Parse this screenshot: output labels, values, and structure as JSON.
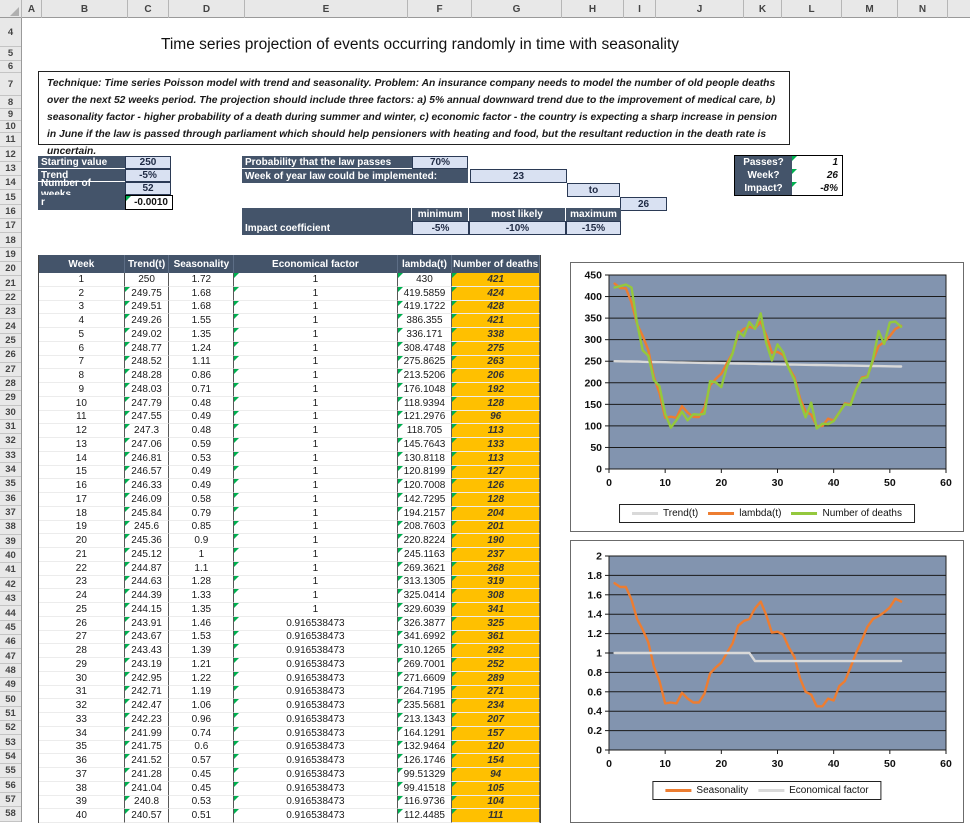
{
  "spreadsheet": {
    "column_headers": [
      "A",
      "B",
      "C",
      "D",
      "E",
      "F",
      "G",
      "H",
      "I",
      "J",
      "K",
      "L",
      "M",
      "N"
    ],
    "row_numbers": [
      "4",
      "5",
      "6",
      "7",
      "8",
      "9",
      "10",
      "11",
      "12",
      "13",
      "14",
      "15",
      "16",
      "17",
      "18",
      "19",
      "20",
      "21",
      "22",
      "23",
      "24",
      "25",
      "26",
      "27",
      "28",
      "29",
      "30",
      "31",
      "32",
      "33",
      "34",
      "35",
      "36",
      "37",
      "38",
      "39",
      "40",
      "41",
      "42",
      "43",
      "44",
      "45",
      "46",
      "47",
      "48",
      "49",
      "50",
      "51",
      "52",
      "53",
      "54",
      "55",
      "56",
      "57",
      "58"
    ]
  },
  "title": "Time series projection of events occurring randomly in time with seasonality",
  "description": "Technique: Time series Poisson model with trend and seasonality. Problem: An insurance company needs to model the number of old people deaths over the next 52 weeks period. The projection should include three factors: a) 5% annual downward trend due to the improvement of medical care, b) seasonality factor - higher probability of a death during summer and winter, c) economic factor - the country is expecting a sharp increase in pension in June if the law is passed through parliament which should help pensioners with heating and food, but the resultant reduction in the death rate is uncertain.",
  "inputs": {
    "starting_value_label": "Starting value",
    "starting_value": "250",
    "trend_label": "Trend",
    "trend": "-5%",
    "weeks_label": "Number of weeks",
    "weeks": "52",
    "r_label": "r",
    "r": "-0.0010"
  },
  "law": {
    "probability_label": "Probability that the law passes",
    "probability": "70%",
    "week_label": "Week of year law could be implemented:",
    "week_from": "23",
    "to_label": "to",
    "week_to": "26"
  },
  "outputs": {
    "passes_label": "Passes?",
    "passes": "1",
    "week_label": "Week?",
    "week": "26",
    "impact_label": "Impact?",
    "impact": "-8%"
  },
  "impact_coefficient": {
    "row_label": "Impact coefficient",
    "headers": [
      "minimum",
      "most likely",
      "maximum"
    ],
    "values": [
      "-5%",
      "-10%",
      "-15%"
    ]
  },
  "table": {
    "headers": [
      "Week",
      "Trend(t)",
      "Seasonality",
      "Economical factor",
      "lambda(t)",
      "Number of deaths"
    ],
    "rows": [
      [
        "1",
        "250",
        "1.72",
        "1",
        "430",
        "421"
      ],
      [
        "2",
        "249.75",
        "1.68",
        "1",
        "419.5859",
        "424"
      ],
      [
        "3",
        "249.51",
        "1.68",
        "1",
        "419.1722",
        "428"
      ],
      [
        "4",
        "249.26",
        "1.55",
        "1",
        "386.355",
        "421"
      ],
      [
        "5",
        "249.02",
        "1.35",
        "1",
        "336.171",
        "338"
      ],
      [
        "6",
        "248.77",
        "1.24",
        "1",
        "308.4748",
        "275"
      ],
      [
        "7",
        "248.52",
        "1.11",
        "1",
        "275.8625",
        "263"
      ],
      [
        "8",
        "248.28",
        "0.86",
        "1",
        "213.5206",
        "206"
      ],
      [
        "9",
        "248.03",
        "0.71",
        "1",
        "176.1048",
        "192"
      ],
      [
        "10",
        "247.79",
        "0.48",
        "1",
        "118.9394",
        "128"
      ],
      [
        "11",
        "247.55",
        "0.49",
        "1",
        "121.2976",
        "96"
      ],
      [
        "12",
        "247.3",
        "0.48",
        "1",
        "118.705",
        "113"
      ],
      [
        "13",
        "247.06",
        "0.59",
        "1",
        "145.7643",
        "133"
      ],
      [
        "14",
        "246.81",
        "0.53",
        "1",
        "130.8118",
        "113"
      ],
      [
        "15",
        "246.57",
        "0.49",
        "1",
        "120.8199",
        "127"
      ],
      [
        "16",
        "246.33",
        "0.49",
        "1",
        "120.7008",
        "126"
      ],
      [
        "17",
        "246.09",
        "0.58",
        "1",
        "142.7295",
        "128"
      ],
      [
        "18",
        "245.84",
        "0.79",
        "1",
        "194.2157",
        "204"
      ],
      [
        "19",
        "245.6",
        "0.85",
        "1",
        "208.7603",
        "201"
      ],
      [
        "20",
        "245.36",
        "0.9",
        "1",
        "220.8224",
        "190"
      ],
      [
        "21",
        "245.12",
        "1",
        "1",
        "245.1163",
        "237"
      ],
      [
        "22",
        "244.87",
        "1.1",
        "1",
        "269.3621",
        "268"
      ],
      [
        "23",
        "244.63",
        "1.28",
        "1",
        "313.1305",
        "319"
      ],
      [
        "24",
        "244.39",
        "1.33",
        "1",
        "325.0414",
        "308"
      ],
      [
        "25",
        "244.15",
        "1.35",
        "1",
        "329.6039",
        "341"
      ],
      [
        "26",
        "243.91",
        "1.46",
        "0.916538473",
        "326.3877",
        "325"
      ],
      [
        "27",
        "243.67",
        "1.53",
        "0.916538473",
        "341.6992",
        "361"
      ],
      [
        "28",
        "243.43",
        "1.39",
        "0.916538473",
        "310.1265",
        "292"
      ],
      [
        "29",
        "243.19",
        "1.21",
        "0.916538473",
        "269.7001",
        "252"
      ],
      [
        "30",
        "242.95",
        "1.22",
        "0.916538473",
        "271.6609",
        "289"
      ],
      [
        "31",
        "242.71",
        "1.19",
        "0.916538473",
        "264.7195",
        "271"
      ],
      [
        "32",
        "242.47",
        "1.06",
        "0.916538473",
        "235.5681",
        "234"
      ],
      [
        "33",
        "242.23",
        "0.96",
        "0.916538473",
        "213.1343",
        "207"
      ],
      [
        "34",
        "241.99",
        "0.74",
        "0.916538473",
        "164.1291",
        "157"
      ],
      [
        "35",
        "241.75",
        "0.6",
        "0.916538473",
        "132.9464",
        "120"
      ],
      [
        "36",
        "241.52",
        "0.57",
        "0.916538473",
        "126.1746",
        "154"
      ],
      [
        "37",
        "241.28",
        "0.45",
        "0.916538473",
        "99.51329",
        "94"
      ],
      [
        "38",
        "241.04",
        "0.45",
        "0.916538473",
        "99.41518",
        "105"
      ],
      [
        "39",
        "240.8",
        "0.53",
        "0.916538473",
        "116.9736",
        "104"
      ],
      [
        "40",
        "240.57",
        "0.51",
        "0.916538473",
        "112.4485",
        "111"
      ]
    ]
  },
  "chart_data": [
    {
      "type": "line",
      "x": [
        1,
        2,
        3,
        4,
        5,
        6,
        7,
        8,
        9,
        10,
        11,
        12,
        13,
        14,
        15,
        16,
        17,
        18,
        19,
        20,
        21,
        22,
        23,
        24,
        25,
        26,
        27,
        28,
        29,
        30,
        31,
        32,
        33,
        34,
        35,
        36,
        37,
        38,
        39,
        40,
        41,
        42,
        43,
        44,
        45,
        46,
        47,
        48,
        49,
        50,
        51,
        52
      ],
      "xlim": [
        0,
        60
      ],
      "xtick": 10,
      "ylim": [
        0,
        450
      ],
      "ytick": 50,
      "plot_bg": "#8294AF",
      "legend": "bottom",
      "series": [
        {
          "name": "Trend(t)",
          "color": "#D9D9D9",
          "values": [
            250,
            249.75,
            249.51,
            249.26,
            249.02,
            248.77,
            248.52,
            248.28,
            248.03,
            247.79,
            247.55,
            247.3,
            247.06,
            246.81,
            246.57,
            246.33,
            246.09,
            245.84,
            245.6,
            245.36,
            245.12,
            244.87,
            244.63,
            244.39,
            244.15,
            243.91,
            243.67,
            243.43,
            243.19,
            242.95,
            242.71,
            242.47,
            242.23,
            241.99,
            241.75,
            241.52,
            241.28,
            241.04,
            240.8,
            240.57,
            240.33,
            240.09,
            239.85,
            239.62,
            239.38,
            239.14,
            238.9,
            238.67,
            238.43,
            238.19,
            237.96,
            237.72
          ]
        },
        {
          "name": "lambda(t)",
          "color": "#ED7D31",
          "values": [
            430,
            419.5859,
            419.1722,
            386.355,
            336.171,
            308.4748,
            275.8625,
            213.5206,
            176.1048,
            118.9394,
            121.2976,
            118.705,
            145.7643,
            130.8118,
            120.8199,
            120.7008,
            142.7295,
            194.2157,
            208.7603,
            220.8224,
            245.1163,
            269.3621,
            313.1305,
            325.0414,
            329.6039,
            326.3877,
            341.6992,
            310.1265,
            269.7001,
            271.6609,
            264.7195,
            235.5681,
            213.1343,
            164.1291,
            132.9464,
            126.1746,
            99.51329,
            99.41518,
            116.9736,
            112.4485,
            131,
            152,
            150,
            186,
            212,
            215,
            252,
            285,
            295,
            308,
            325,
            332
          ]
        },
        {
          "name": "Number of deaths",
          "color": "#94C83D",
          "values": [
            421,
            424,
            428,
            421,
            338,
            275,
            263,
            206,
            192,
            128,
            96,
            113,
            133,
            113,
            127,
            126,
            128,
            204,
            201,
            190,
            237,
            268,
            319,
            308,
            341,
            325,
            361,
            292,
            252,
            289,
            271,
            234,
            207,
            157,
            120,
            154,
            94,
            105,
            104,
            111,
            131,
            150,
            148,
            185,
            210,
            213,
            255,
            320,
            290,
            340,
            342,
            330
          ]
        }
      ]
    },
    {
      "type": "line",
      "x": [
        1,
        2,
        3,
        4,
        5,
        6,
        7,
        8,
        9,
        10,
        11,
        12,
        13,
        14,
        15,
        16,
        17,
        18,
        19,
        20,
        21,
        22,
        23,
        24,
        25,
        26,
        27,
        28,
        29,
        30,
        31,
        32,
        33,
        34,
        35,
        36,
        37,
        38,
        39,
        40,
        41,
        42,
        43,
        44,
        45,
        46,
        47,
        48,
        49,
        50,
        51,
        52
      ],
      "xlim": [
        0,
        60
      ],
      "xtick": 10,
      "ylim": [
        0,
        2
      ],
      "ytick": 0.2,
      "plot_bg": "#8294AF",
      "legend": "bottom",
      "series": [
        {
          "name": "Seasonality",
          "color": "#ED7D31",
          "values": [
            1.72,
            1.68,
            1.68,
            1.55,
            1.35,
            1.24,
            1.11,
            0.86,
            0.71,
            0.48,
            0.49,
            0.48,
            0.59,
            0.53,
            0.49,
            0.49,
            0.58,
            0.79,
            0.85,
            0.9,
            1,
            1.1,
            1.28,
            1.33,
            1.35,
            1.46,
            1.53,
            1.39,
            1.21,
            1.22,
            1.19,
            1.06,
            0.96,
            0.74,
            0.6,
            0.57,
            0.45,
            0.45,
            0.53,
            0.51,
            0.66,
            0.71,
            0.85,
            1.0,
            1.13,
            1.27,
            1.35,
            1.38,
            1.42,
            1.47,
            1.56,
            1.53
          ]
        },
        {
          "name": "Economical factor",
          "color": "#D9D9D9",
          "values": [
            1,
            1,
            1,
            1,
            1,
            1,
            1,
            1,
            1,
            1,
            1,
            1,
            1,
            1,
            1,
            1,
            1,
            1,
            1,
            1,
            1,
            1,
            1,
            1,
            1,
            0.916538473,
            0.916538473,
            0.916538473,
            0.916538473,
            0.916538473,
            0.916538473,
            0.916538473,
            0.916538473,
            0.916538473,
            0.916538473,
            0.916538473,
            0.916538473,
            0.916538473,
            0.916538473,
            0.916538473,
            0.916538473,
            0.916538473,
            0.916538473,
            0.916538473,
            0.916538473,
            0.916538473,
            0.916538473,
            0.916538473,
            0.916538473,
            0.916538473,
            0.916538473,
            0.916538473
          ]
        }
      ]
    }
  ]
}
